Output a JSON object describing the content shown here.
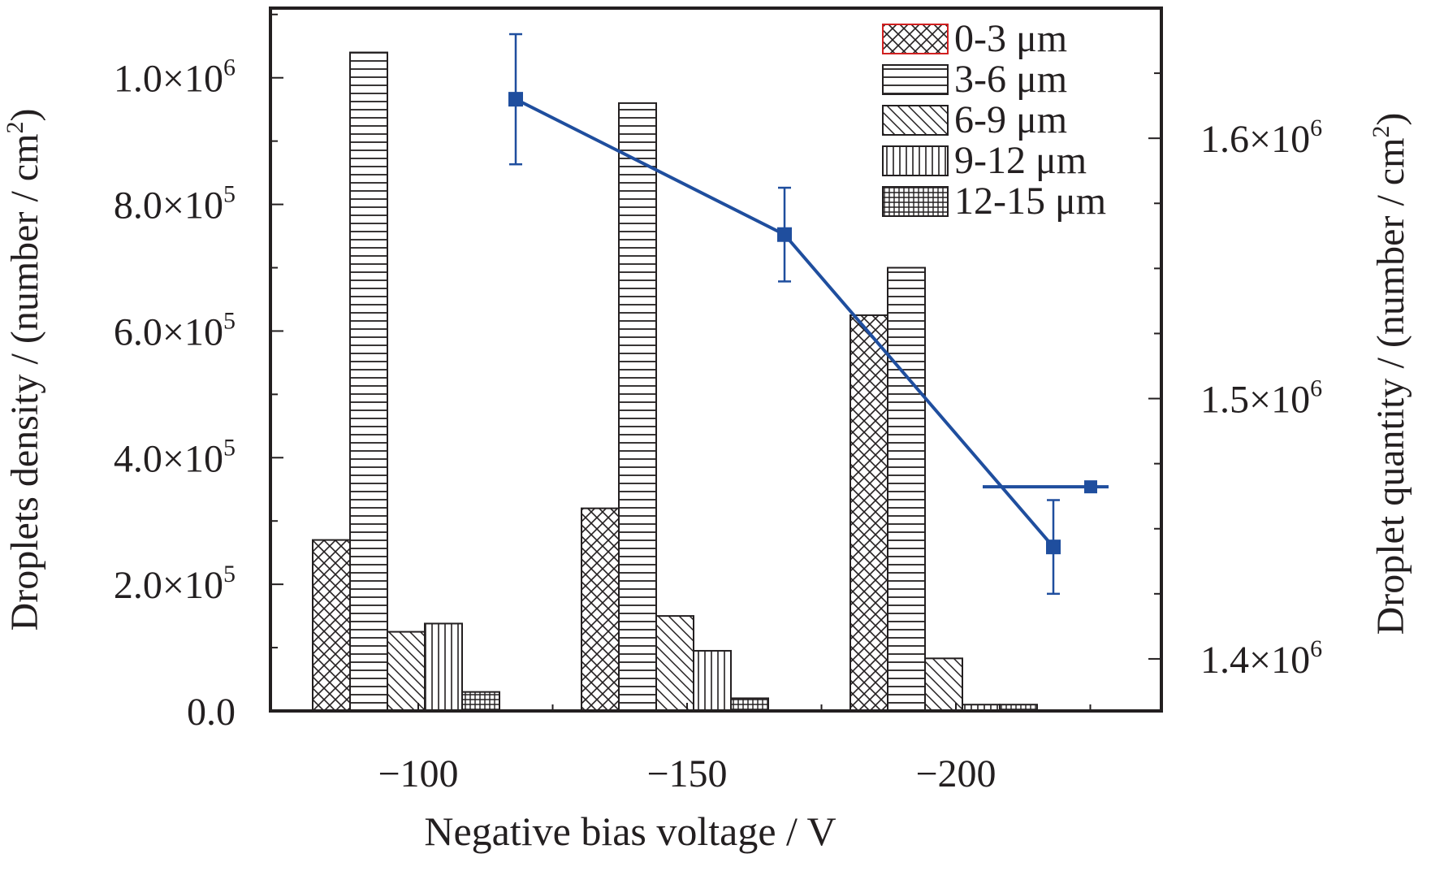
{
  "chart_data": {
    "type": "bar",
    "title": "",
    "xlabel": "Negative bias voltage / V",
    "ylabel": "Droplets density / (number / cm",
    "ylabel_sup": "2",
    "ylabel_end": ")",
    "y2label": "Droplet quantity / (number / cm",
    "y2label_sup": "2",
    "y2label_end": ")",
    "categories": [
      "−100",
      "−150",
      "−200"
    ],
    "ylim": [
      0,
      1110000
    ],
    "y2lim": [
      1380000,
      1650000
    ],
    "yticks": [
      {
        "value": 0,
        "mant": "0.0",
        "exp": ""
      },
      {
        "value": 200000,
        "mant": "2.0×10",
        "exp": "5"
      },
      {
        "value": 400000,
        "mant": "4.0×10",
        "exp": "5"
      },
      {
        "value": 600000,
        "mant": "6.0×10",
        "exp": "5"
      },
      {
        "value": 800000,
        "mant": "8.0×10",
        "exp": "5"
      },
      {
        "value": 1000000,
        "mant": "1.0×10",
        "exp": "6"
      }
    ],
    "y2ticks": [
      {
        "value": 1400000,
        "mant": "1.4×10",
        "exp": "6"
      },
      {
        "value": 1500000,
        "mant": "1.5×10",
        "exp": "6"
      },
      {
        "value": 1600000,
        "mant": "1.6×10",
        "exp": "6"
      }
    ],
    "series": [
      {
        "name": "0-3 μm",
        "pattern": "crosshatch",
        "values": [
          270000,
          320000,
          625000
        ]
      },
      {
        "name": "3-6 μm",
        "pattern": "horizontal",
        "values": [
          1040000,
          960000,
          700000
        ]
      },
      {
        "name": "6-9 μm",
        "pattern": "diagonal",
        "values": [
          125000,
          150000,
          83000
        ]
      },
      {
        "name": "9-12 μm",
        "pattern": "vertical",
        "values": [
          138000,
          95000,
          10000
        ]
      },
      {
        "name": "12-15 μm",
        "pattern": "grid",
        "values": [
          30000,
          20000,
          10000
        ]
      }
    ],
    "line_series": {
      "name": "Droplet quantity",
      "axis": "right",
      "color": "#1f4e9e",
      "x_offset": 0.55,
      "values": [
        1615000,
        1563000,
        1443000
      ],
      "errors": [
        25000,
        18000,
        18000
      ]
    },
    "legend": {
      "position": "top-right"
    },
    "colors": {
      "axis": "#231f20",
      "line": "#1f4e9e",
      "legend_border": "#d02020"
    }
  }
}
